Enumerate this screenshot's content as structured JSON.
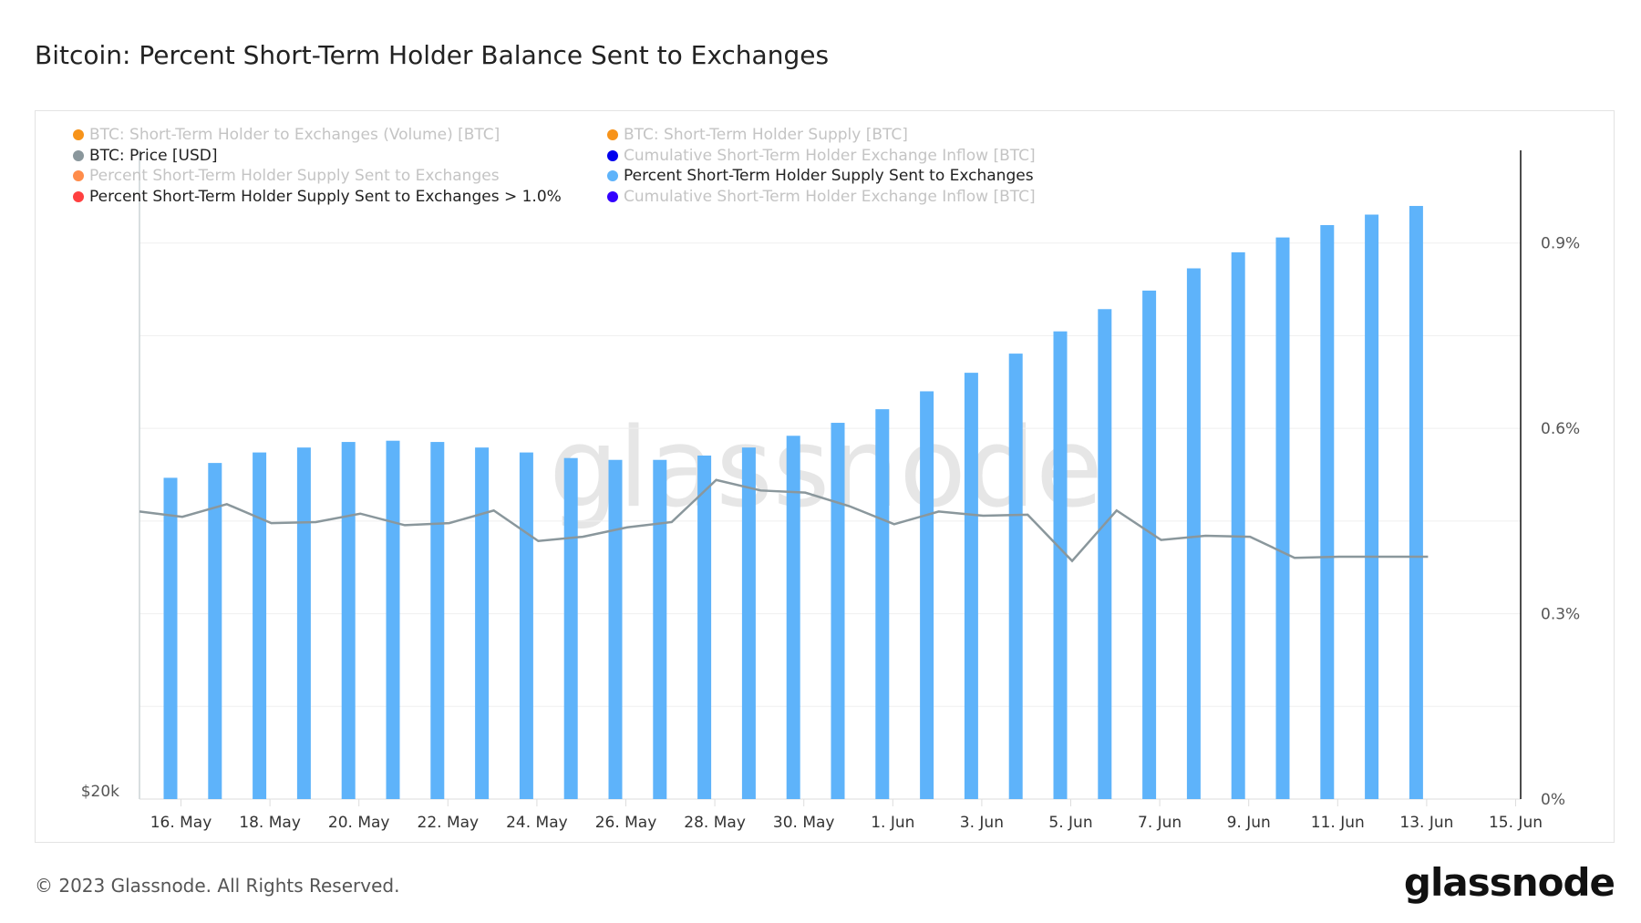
{
  "title": "Bitcoin: Percent Short-Term Holder Balance Sent to Exchanges",
  "footer": "© 2023 Glassnode. All Rights Reserved.",
  "logo": "glassnode",
  "watermark": "glassnode",
  "legend": [
    {
      "label": "BTC: Short-Term Holder to Exchanges (Volume) [BTC]",
      "color": "#f7931a",
      "active": false
    },
    {
      "label": "BTC: Short-Term Holder Supply [BTC]",
      "color": "#f7931a",
      "active": false
    },
    {
      "label": "BTC: Price [USD]",
      "color": "#8a979c",
      "active": true
    },
    {
      "label": "Cumulative Short-Term Holder Exchange Inflow [BTC]",
      "color": "#0000ee",
      "active": false
    },
    {
      "label": "Percent Short-Term Holder Supply Sent to Exchanges",
      "color": "#ff8c4a",
      "active": false
    },
    {
      "label": "Percent Short-Term Holder Supply Sent to Exchanges",
      "color": "#5eb3fa",
      "active": true
    },
    {
      "label": "Percent Short-Term Holder Supply Sent to Exchanges > 1.0%",
      "color": "#ff4040",
      "active": true
    },
    {
      "label": "Cumulative Short-Term Holder Exchange Inflow [BTC]",
      "color": "#3300ff",
      "active": false
    }
  ],
  "chart_data": {
    "type": "bar",
    "x_tick_labels": [
      "16. May",
      "18. May",
      "20. May",
      "22. May",
      "24. May",
      "26. May",
      "28. May",
      "30. May",
      "1. Jun",
      "3. Jun",
      "5. Jun",
      "7. Jun",
      "9. Jun",
      "11. Jun",
      "13. Jun",
      "15. Jun"
    ],
    "right_axis": {
      "tick_labels": [
        "0%",
        "0.3%",
        "0.6%",
        "0.9%"
      ],
      "ticks": [
        0,
        0.3,
        0.6,
        0.9
      ],
      "ylim": [
        0,
        1.05
      ],
      "unit": "%"
    },
    "left_axis": {
      "tick_labels": [
        "$20k"
      ],
      "ylim": [
        19000,
        37500
      ]
    },
    "grid": true,
    "series": [
      {
        "name": "Percent Short-Term Holder Supply Sent to Exchanges",
        "type": "bar",
        "color": "#5eb3fa",
        "axis": "right",
        "x": [
          "16 May",
          "17 May",
          "18 May",
          "19 May",
          "20 May",
          "21 May",
          "22 May",
          "23 May",
          "24 May",
          "25 May",
          "26 May",
          "27 May",
          "28 May",
          "29 May",
          "30 May",
          "31 May",
          "1 Jun",
          "2 Jun",
          "3 Jun",
          "4 Jun",
          "5 Jun",
          "6 Jun",
          "7 Jun",
          "8 Jun",
          "9 Jun",
          "10 Jun",
          "11 Jun",
          "12 Jun",
          "13 Jun"
        ],
        "values": [
          0.52,
          0.544,
          0.561,
          0.569,
          0.578,
          0.58,
          0.578,
          0.569,
          0.561,
          0.552,
          0.549,
          0.549,
          0.556,
          0.569,
          0.588,
          0.609,
          0.631,
          0.66,
          0.69,
          0.721,
          0.757,
          0.793,
          0.823,
          0.859,
          0.885,
          0.909,
          0.929,
          0.946,
          0.96
        ]
      },
      {
        "name": "BTC: Price [USD]",
        "type": "line",
        "color": "#8a979c",
        "axis": "left",
        "x": [
          "15 May",
          "16 May",
          "17 May",
          "18 May",
          "19 May",
          "20 May",
          "21 May",
          "22 May",
          "23 May",
          "24 May",
          "25 May",
          "26 May",
          "27 May",
          "28 May",
          "29 May",
          "30 May",
          "31 May",
          "1 Jun",
          "2 Jun",
          "3 Jun",
          "4 Jun",
          "5 Jun",
          "6 Jun",
          "7 Jun",
          "8 Jun",
          "9 Jun",
          "10 Jun",
          "11 Jun",
          "12 Jun",
          "13 Jun"
        ],
        "values": [
          27200,
          27050,
          27410,
          26870,
          26900,
          27140,
          26810,
          26870,
          27230,
          26360,
          26480,
          26750,
          26900,
          28100,
          27800,
          27740,
          27350,
          26840,
          27200,
          27080,
          27110,
          25790,
          27230,
          26390,
          26510,
          26480,
          25880,
          25910,
          25910,
          25910
        ]
      }
    ]
  }
}
